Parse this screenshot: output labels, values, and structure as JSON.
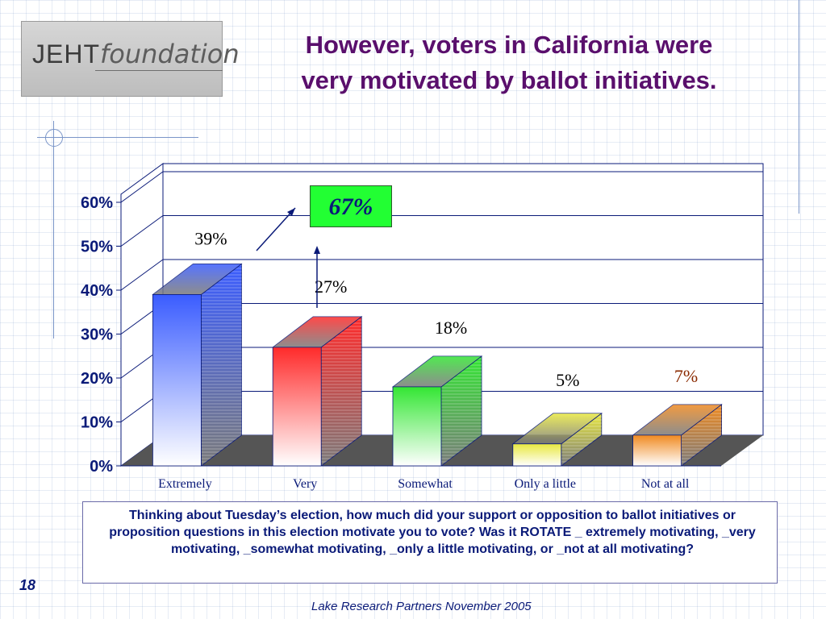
{
  "slide": {
    "logo_main": "JEHT",
    "logo_italic": "foundation",
    "title_line1": "However, voters in California were",
    "title_line2": "very motivated by ballot initiatives.",
    "callout": "67%",
    "question": "Thinking about Tuesday’s election, how much did your support or opposition to ballot initiatives or proposition questions in this election motivate you to vote?  Was it ROTATE _ extremely motivating, _very motivating, _somewhat motivating, _only a little motivating, or _not at all motivating?",
    "page_number": "18",
    "footer": "Lake Research Partners November 2005"
  },
  "colors": {
    "title": "#5a0f6c",
    "axis_text": "#0a1a78",
    "callout_bg": "#22ff33",
    "floor": "#555555"
  },
  "chart_data": {
    "type": "bar",
    "title": "",
    "xlabel": "",
    "ylabel": "",
    "ylim": [
      0,
      60
    ],
    "yticks": [
      "0%",
      "10%",
      "20%",
      "30%",
      "40%",
      "50%",
      "60%"
    ],
    "categories": [
      "Extremely",
      "Very",
      "Somewhat",
      "Only a little",
      "Not at all"
    ],
    "values": [
      39,
      27,
      18,
      5,
      7
    ],
    "value_labels": [
      "39%",
      "27%",
      "18%",
      "5%",
      "7%"
    ],
    "bar_colors": [
      "#3a5cff",
      "#ff2a2a",
      "#33e633",
      "#e8e840",
      "#f08a20"
    ],
    "grid": true,
    "legend": "none"
  }
}
